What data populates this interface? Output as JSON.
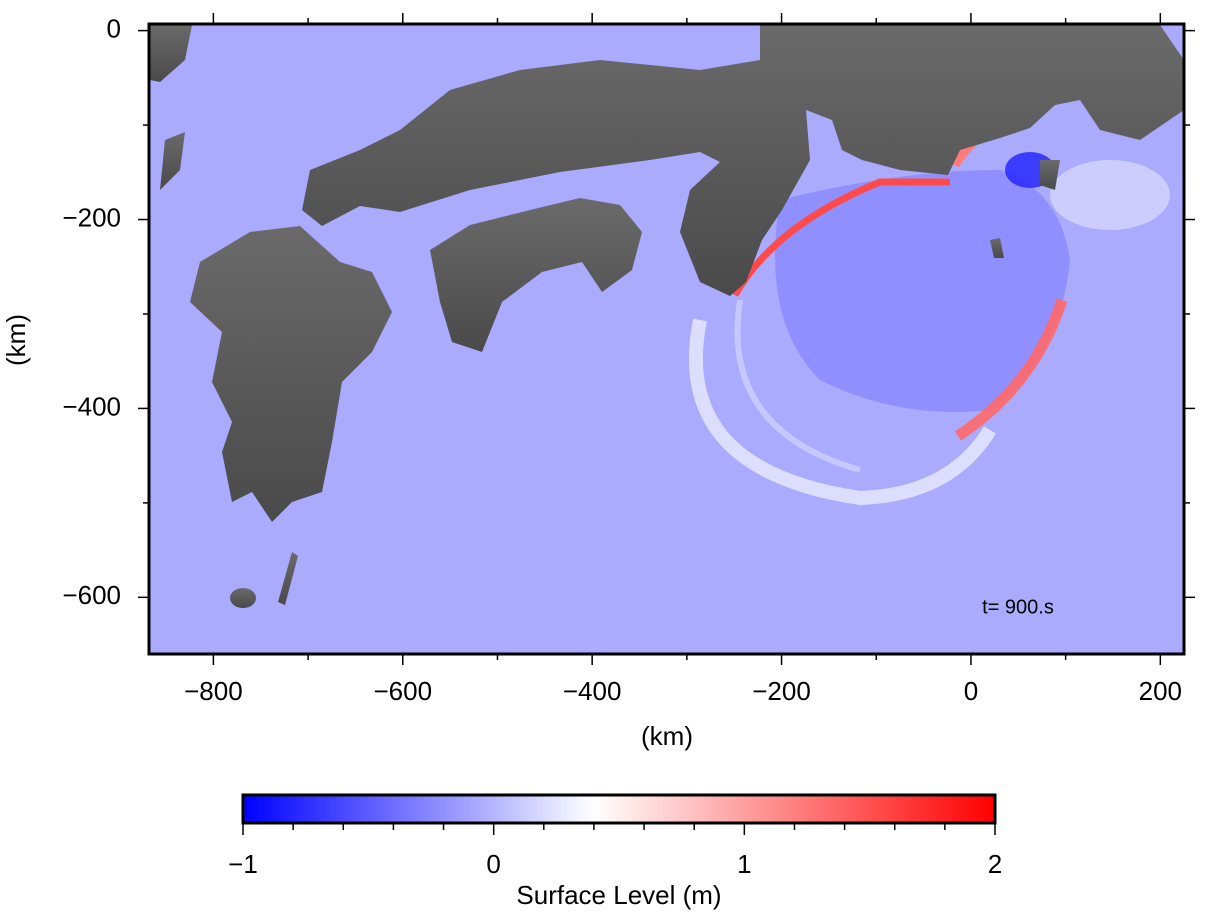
{
  "map": {
    "annotation": "t= 900.s",
    "xlabel": "(km)",
    "ylabel": "(km)",
    "xlim": [
      -868,
      225
    ],
    "ylim": [
      -660,
      7
    ],
    "xticks": [
      {
        "value": -800,
        "label": "−800"
      },
      {
        "value": -600,
        "label": "−600"
      },
      {
        "value": -400,
        "label": "−400"
      },
      {
        "value": -200,
        "label": "−200"
      },
      0,
      200
    ],
    "xminorticks": [
      -700,
      -500,
      -300,
      -100,
      100
    ],
    "yticks": [
      0,
      {
        "value": -200,
        "label": "−200"
      },
      {
        "value": -400,
        "label": "−400"
      },
      {
        "value": -600,
        "label": "−600"
      }
    ],
    "yminorticks": [
      -100,
      -300,
      -500
    ],
    "sea_color": "#aaaaff",
    "land_color": "#4a4a4a"
  },
  "colorbar": {
    "label": "Surface Level (m)",
    "lim": [
      -1,
      2
    ],
    "ticks": [
      {
        "value": -1,
        "label": "−1"
      },
      0,
      1,
      2
    ],
    "minorticks": [
      -0.8,
      -0.6,
      -0.4,
      -0.2,
      0.2,
      0.4,
      0.6,
      0.8,
      1.2,
      1.4,
      1.6,
      1.8
    ],
    "colormap": [
      {
        "value": -1,
        "color": "#0000ff"
      },
      {
        "value": 0.4,
        "color": "#ffffff"
      },
      {
        "value": 2,
        "color": "#ff0000"
      }
    ]
  }
}
